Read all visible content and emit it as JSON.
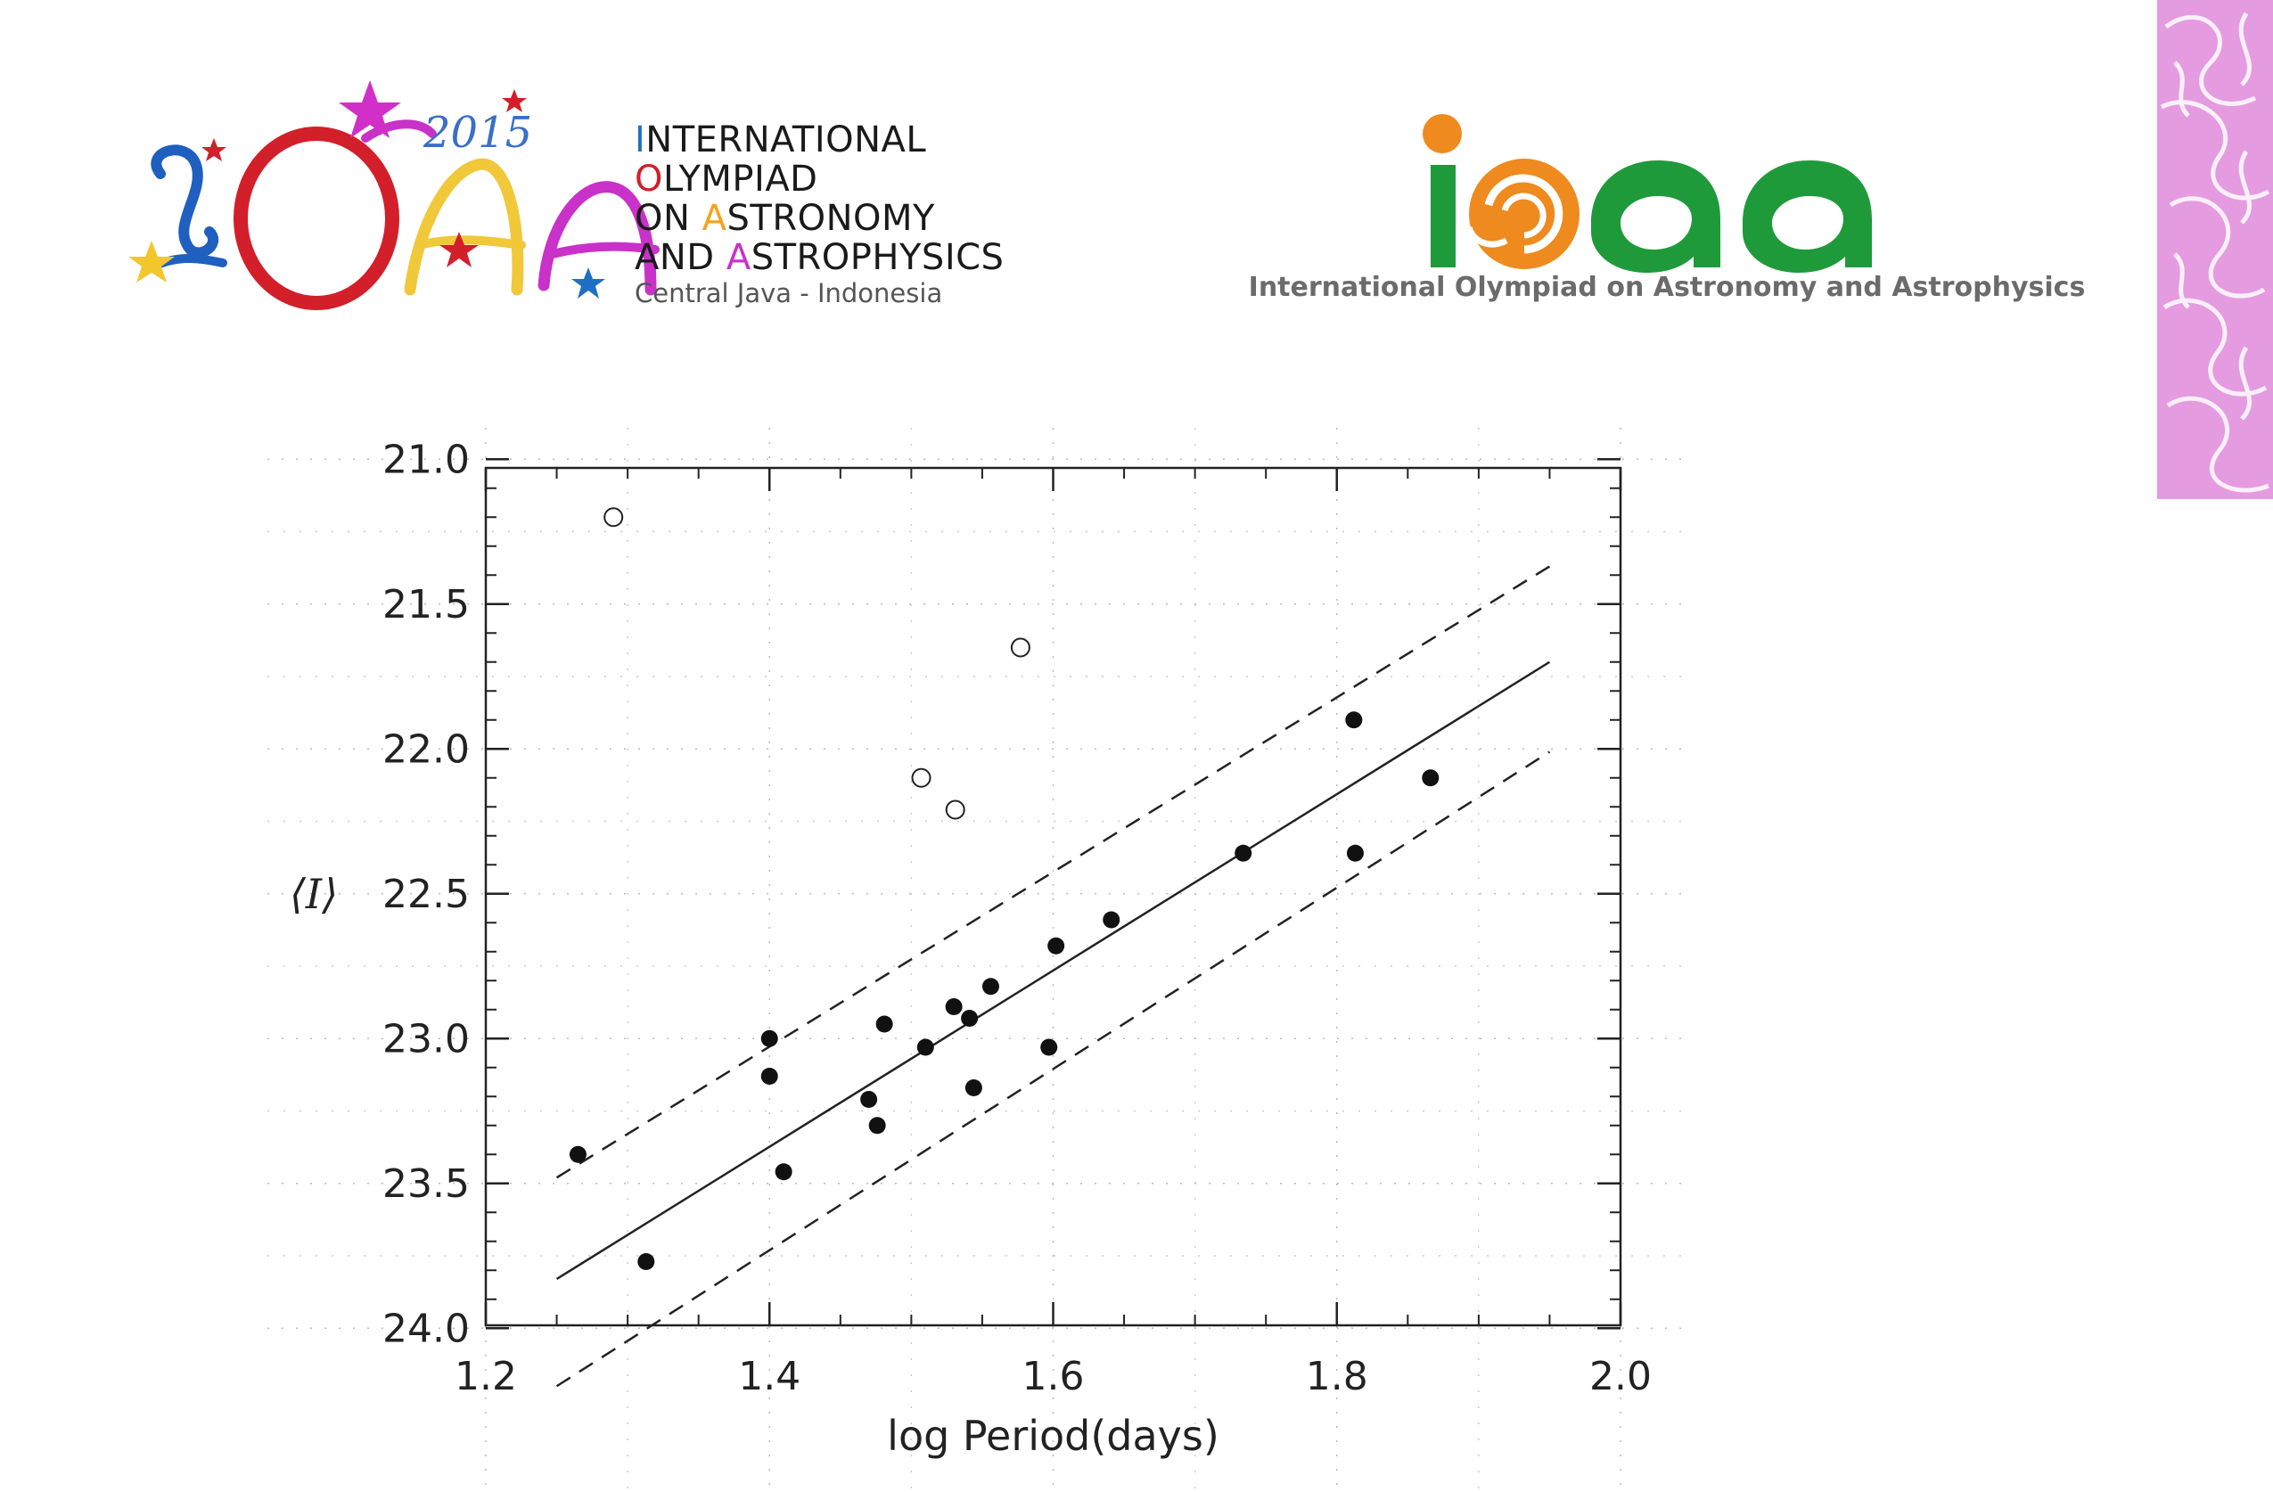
{
  "logos": {
    "left": {
      "year": "2015",
      "letters": "IOAA",
      "lines": [
        {
          "initial": "I",
          "rest": "NTERNATIONAL"
        },
        {
          "initial": "O",
          "rest": "LYMPIAD"
        },
        {
          "pre": "ON ",
          "initial": "A",
          "rest": "STRONOMY"
        },
        {
          "pre": "AND ",
          "initial": "A",
          "rest": "STROPHYSICS"
        }
      ],
      "subtitle": "Central Java - Indonesia"
    },
    "right": {
      "wordmark": "ioaa",
      "caption": "International Olympiad on Astronomy and Astrophysics"
    }
  },
  "colors": {
    "logo_blue": "#1f6fc5",
    "logo_red": "#d21f2a",
    "logo_orange": "#f5a31d",
    "logo_magenta": "#c832c8",
    "logo_green": "#1f9a3b",
    "logo_dot_orange": "#ef8a1e",
    "batik_pink": "#e59be0"
  },
  "chart_data": {
    "type": "scatter",
    "title": "",
    "xlabel": "log Period(days)",
    "ylabel": "⟨I⟩",
    "xlim": [
      1.2,
      2.0
    ],
    "ylim": [
      24.0,
      21.0
    ],
    "y_inverted": true,
    "xticks": [
      "1.2",
      "1.4",
      "1.6",
      "1.8",
      "2.0"
    ],
    "yticks": [
      "21.0",
      "21.5",
      "22.0",
      "22.5",
      "23.0",
      "23.5",
      "24.0"
    ],
    "grid": true,
    "series": [
      {
        "marker": "filled-circle",
        "points": [
          [
            1.265,
            23.4
          ],
          [
            1.313,
            23.77
          ],
          [
            1.4,
            23.0
          ],
          [
            1.4,
            23.13
          ],
          [
            1.41,
            23.46
          ],
          [
            1.47,
            23.21
          ],
          [
            1.476,
            23.3
          ],
          [
            1.481,
            22.95
          ],
          [
            1.51,
            23.03
          ],
          [
            1.53,
            22.89
          ],
          [
            1.541,
            22.93
          ],
          [
            1.544,
            23.17
          ],
          [
            1.556,
            22.82
          ],
          [
            1.597,
            23.03
          ],
          [
            1.602,
            22.68
          ],
          [
            1.641,
            22.59
          ],
          [
            1.734,
            22.36
          ],
          [
            1.812,
            21.9
          ],
          [
            1.813,
            22.36
          ],
          [
            1.866,
            22.1
          ]
        ]
      },
      {
        "marker": "open-circle",
        "points": [
          [
            1.29,
            21.2
          ],
          [
            1.507,
            22.1
          ],
          [
            1.531,
            22.21
          ],
          [
            1.577,
            21.65
          ]
        ]
      }
    ],
    "lines": [
      {
        "style": "solid",
        "from": [
          1.25,
          23.83
        ],
        "to": [
          1.95,
          21.7
        ]
      },
      {
        "style": "dashed",
        "from": [
          1.25,
          23.48
        ],
        "to": [
          1.95,
          21.37
        ]
      },
      {
        "style": "dashed",
        "from": [
          1.25,
          24.2
        ],
        "to": [
          1.95,
          22.01
        ]
      }
    ]
  }
}
